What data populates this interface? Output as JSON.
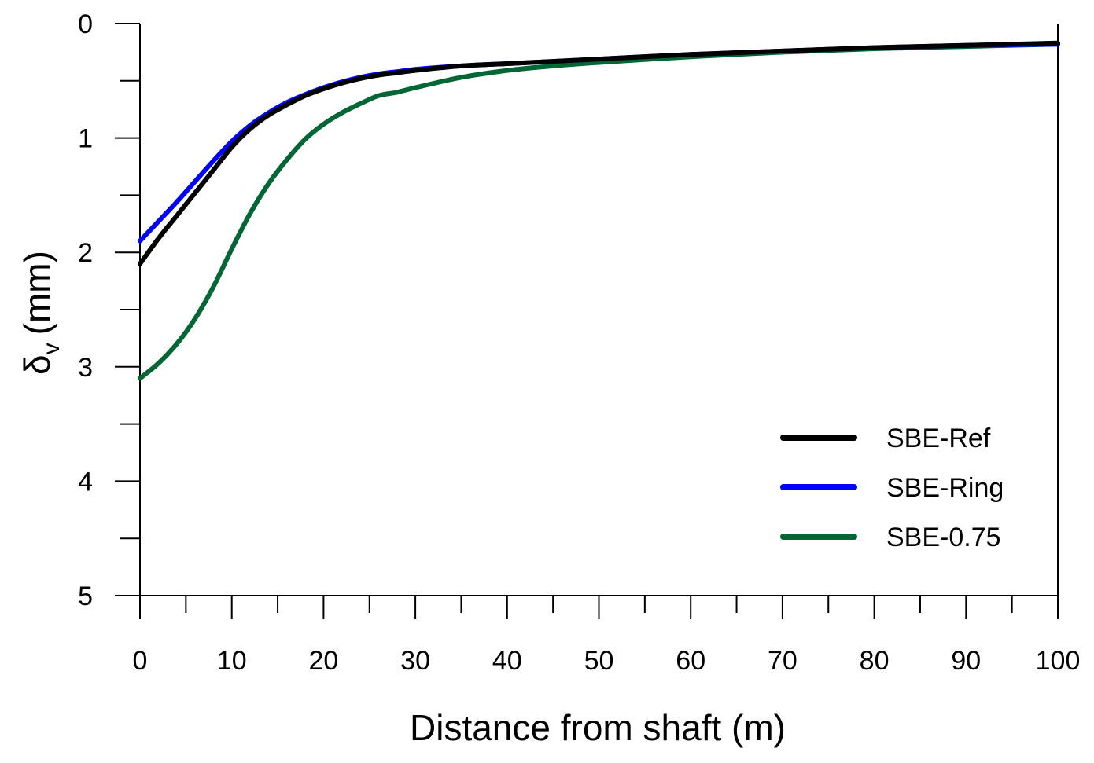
{
  "chart_data": {
    "type": "line",
    "title": "",
    "xlabel": "Distance from shaft (m)",
    "ylabel_symbol": "δ",
    "ylabel_subscript": "v",
    "ylabel_unit": "(mm)",
    "xlim": [
      0,
      100
    ],
    "ylim": [
      0,
      5
    ],
    "y_inverted": true,
    "xticks": [
      0,
      10,
      20,
      30,
      40,
      50,
      60,
      70,
      80,
      90,
      100
    ],
    "xtick_labels": [
      "0",
      "10",
      "20",
      "30",
      "40",
      "50",
      "60",
      "70",
      "80",
      "90",
      "100"
    ],
    "yticks": [
      0,
      1,
      2,
      3,
      4,
      5
    ],
    "ytick_labels": [
      "0",
      "1",
      "2",
      "3",
      "4",
      "5"
    ],
    "grid": false,
    "legend_position": "bottom-right",
    "series": [
      {
        "name": "SBE-Ref",
        "color": "#000000",
        "x": [
          0,
          2,
          4,
          6,
          8,
          10,
          12,
          14,
          16,
          18,
          20,
          22,
          24,
          26,
          28,
          30,
          35,
          40,
          50,
          60,
          70,
          80,
          90,
          100
        ],
        "y": [
          2.1,
          1.88,
          1.68,
          1.48,
          1.28,
          1.08,
          0.92,
          0.8,
          0.71,
          0.63,
          0.57,
          0.52,
          0.48,
          0.45,
          0.43,
          0.41,
          0.37,
          0.35,
          0.31,
          0.27,
          0.24,
          0.21,
          0.19,
          0.17
        ]
      },
      {
        "name": "SBE-Ring",
        "color": "#0000ff",
        "x": [
          0,
          2,
          4,
          6,
          8,
          10,
          12,
          14,
          16,
          18,
          20,
          22,
          24,
          26,
          28,
          30,
          35,
          40,
          50,
          60,
          70,
          80,
          90,
          100
        ],
        "y": [
          1.9,
          1.73,
          1.56,
          1.38,
          1.2,
          1.03,
          0.89,
          0.78,
          0.69,
          0.62,
          0.56,
          0.51,
          0.47,
          0.44,
          0.42,
          0.4,
          0.37,
          0.35,
          0.31,
          0.27,
          0.24,
          0.21,
          0.19,
          0.18
        ]
      },
      {
        "name": "SBE-0.75",
        "color": "#006633",
        "x": [
          0,
          2,
          4,
          6,
          8,
          10,
          12,
          14,
          16,
          18,
          20,
          22,
          24,
          26,
          28,
          30,
          35,
          40,
          45,
          50,
          60,
          70,
          80,
          90,
          100
        ],
        "y": [
          3.1,
          2.97,
          2.8,
          2.58,
          2.3,
          1.97,
          1.66,
          1.4,
          1.19,
          1.01,
          0.88,
          0.78,
          0.7,
          0.63,
          0.6,
          0.56,
          0.47,
          0.41,
          0.37,
          0.34,
          0.29,
          0.25,
          0.22,
          0.2,
          0.18
        ]
      }
    ]
  }
}
